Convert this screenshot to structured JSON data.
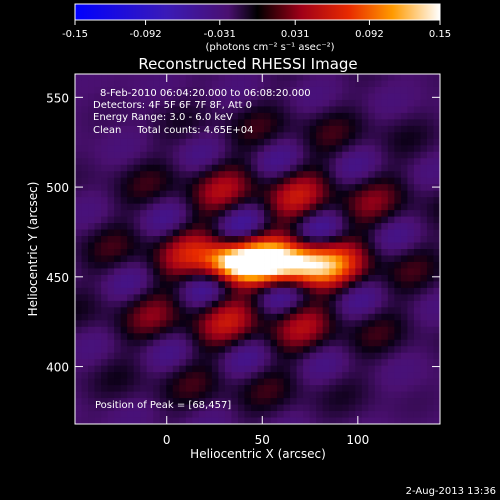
{
  "colorbar": {
    "tick_labels": [
      "-0.15",
      "-0.092",
      "-0.031",
      "0.031",
      "0.092",
      "0.15"
    ],
    "tick_values": [
      -0.15,
      -0.092,
      -0.031,
      0.031,
      0.092,
      0.15
    ],
    "range": [
      -0.15,
      0.15
    ],
    "unit_label": "(photons cm⁻² s⁻¹ asec⁻²)"
  },
  "chart_data": {
    "type": "heatmap",
    "title": "Reconstructed RHESSI Image",
    "xlabel": "Heliocentric X (arcsec)",
    "ylabel": "Heliocentric Y (arcsec)",
    "xlim": [
      -48,
      143
    ],
    "ylim": [
      368,
      563
    ],
    "x_ticks": [
      0,
      50,
      100
    ],
    "y_ticks": [
      400,
      450,
      500,
      550
    ],
    "x_tick_labels": [
      "0",
      "50",
      "100"
    ],
    "y_tick_labels": [
      "400",
      "450",
      "500",
      "550"
    ],
    "colormap": "black-purple-red-orange-yellow-white",
    "peak": {
      "x": 68,
      "y": 457,
      "value": 0.15
    },
    "secondary_peak": {
      "x": 35,
      "y": 458
    },
    "annotations": [
      "8-Feb-2010 06:04:20.000 to 06:08:20.000",
      "Detectors: 4F 5F 6F 7F 8F, Att 0",
      "Energy Range: 3.0 - 6.0 keV",
      "Clean     Total counts: 4.65E+04"
    ],
    "peak_label": "Position of Peak = [68,457]"
  },
  "footer": {
    "timestamp": "2-Aug-2013 13:36"
  }
}
